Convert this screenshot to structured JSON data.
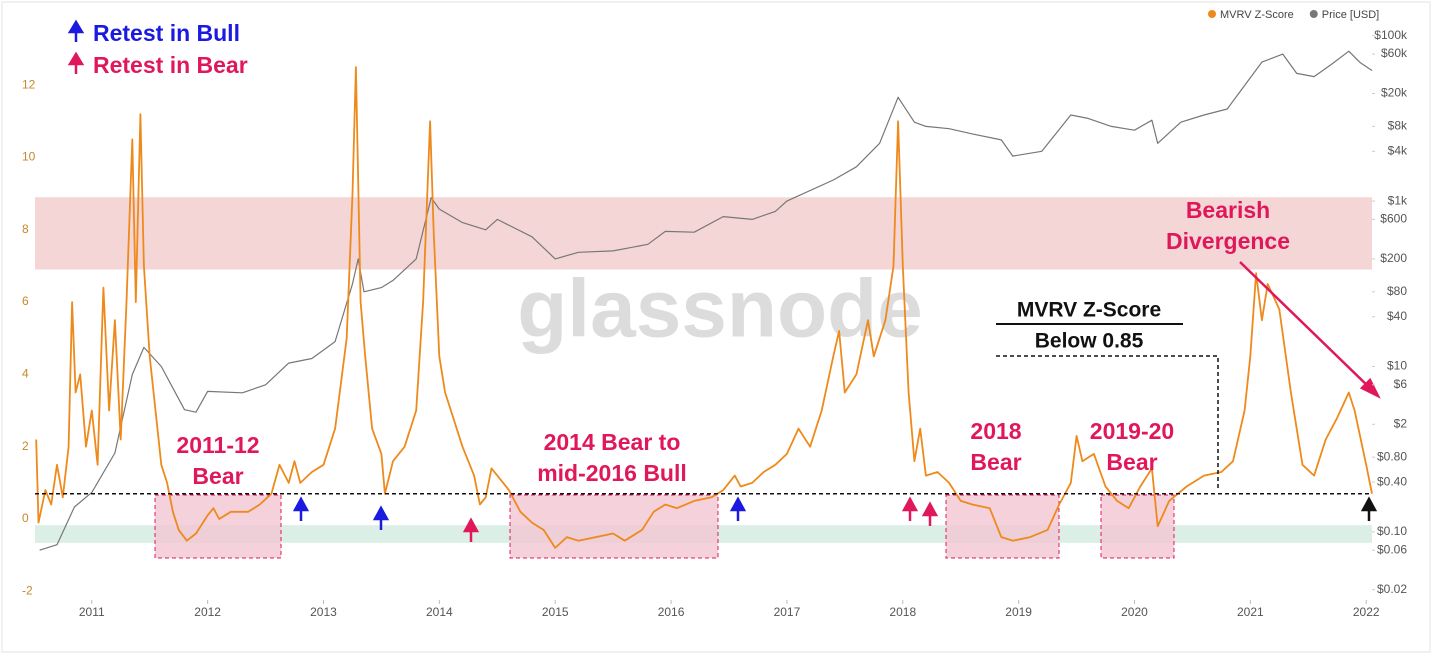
{
  "chart_data": {
    "type": "line",
    "watermark": "glassnode",
    "xlim": [
      2010.51,
      2022.05
    ],
    "xticks": [
      2011,
      2012,
      2013,
      2014,
      2015,
      2016,
      2017,
      2018,
      2019,
      2020,
      2021,
      2022
    ],
    "ylim": [
      -2.24,
      13.94
    ],
    "yticks": [
      -2,
      0,
      2,
      4,
      6,
      8,
      10,
      12
    ],
    "y2lim": [
      0.015,
      178000
    ],
    "y2scale": "log",
    "y2ticks": [
      {
        "value": 0.02,
        "label": "$0.02"
      },
      {
        "value": 0.06,
        "label": "$0.06"
      },
      {
        "value": 0.1,
        "label": "$0.10"
      },
      {
        "value": 0.4,
        "label": "$0.40"
      },
      {
        "value": 0.8,
        "label": "$0.80"
      },
      {
        "value": 2,
        "label": "$2"
      },
      {
        "value": 6,
        "label": "$6"
      },
      {
        "value": 10,
        "label": "$10"
      },
      {
        "value": 40,
        "label": "$40"
      },
      {
        "value": 80,
        "label": "$80"
      },
      {
        "value": 200,
        "label": "$200"
      },
      {
        "value": 600,
        "label": "$600"
      },
      {
        "value": 1000,
        "label": "$1k"
      },
      {
        "value": 4000,
        "label": "$4k"
      },
      {
        "value": 8000,
        "label": "$8k"
      },
      {
        "value": 20000,
        "label": "$20k"
      },
      {
        "value": 60000,
        "label": "$60k"
      },
      {
        "value": 100000,
        "label": "$100k"
      }
    ],
    "bands": [
      {
        "from": 6.9,
        "to": 8.9,
        "color": "#f2cccc"
      },
      {
        "from": -0.66,
        "to": -0.17,
        "color": "#d3ebe0"
      }
    ],
    "threshold": 0.7,
    "series": [
      {
        "name": "MVRV Z-Score",
        "color": "#ee8a1c",
        "x": [
          2010.52,
          2010.54,
          2010.6,
          2010.65,
          2010.7,
          2010.75,
          2010.8,
          2010.83,
          2010.86,
          2010.9,
          2010.95,
          2011.0,
          2011.05,
          2011.1,
          2011.15,
          2011.2,
          2011.25,
          2011.3,
          2011.35,
          2011.38,
          2011.42,
          2011.45,
          2011.5,
          2011.55,
          2011.6,
          2011.65,
          2011.7,
          2011.75,
          2011.82,
          2011.9,
          2012.0,
          2012.05,
          2012.1,
          2012.2,
          2012.35,
          2012.45,
          2012.55,
          2012.62,
          2012.7,
          2012.75,
          2012.8,
          2012.9,
          2013.0,
          2013.1,
          2013.2,
          2013.25,
          2013.28,
          2013.32,
          2013.36,
          2013.42,
          2013.5,
          2013.53,
          2013.6,
          2013.7,
          2013.8,
          2013.86,
          2013.92,
          2013.95,
          2014.0,
          2014.05,
          2014.1,
          2014.2,
          2014.3,
          2014.35,
          2014.4,
          2014.45,
          2014.5,
          2014.6,
          2014.7,
          2014.8,
          2014.9,
          2015.0,
          2015.1,
          2015.2,
          2015.35,
          2015.5,
          2015.6,
          2015.75,
          2015.85,
          2015.95,
          2016.05,
          2016.2,
          2016.35,
          2016.45,
          2016.55,
          2016.6,
          2016.7,
          2016.8,
          2016.9,
          2017.0,
          2017.1,
          2017.2,
          2017.3,
          2017.4,
          2017.45,
          2017.5,
          2017.6,
          2017.7,
          2017.75,
          2017.85,
          2017.92,
          2017.96,
          2018.0,
          2018.05,
          2018.1,
          2018.15,
          2018.2,
          2018.3,
          2018.4,
          2018.5,
          2018.6,
          2018.75,
          2018.85,
          2018.95,
          2019.1,
          2019.25,
          2019.35,
          2019.45,
          2019.5,
          2019.55,
          2019.65,
          2019.75,
          2019.85,
          2019.95,
          2020.05,
          2020.15,
          2020.2,
          2020.3,
          2020.45,
          2020.6,
          2020.75,
          2020.85,
          2020.95,
          2021.0,
          2021.05,
          2021.1,
          2021.15,
          2021.25,
          2021.35,
          2021.45,
          2021.55,
          2021.65,
          2021.75,
          2021.85,
          2021.9,
          2022.0,
          2022.05
        ],
        "values": [
          2.2,
          -0.1,
          0.8,
          0.4,
          1.5,
          0.6,
          2.0,
          6.0,
          3.5,
          4.0,
          2.0,
          3.0,
          1.5,
          6.4,
          3.0,
          5.5,
          2.2,
          6.0,
          10.5,
          6.0,
          11.2,
          7.0,
          4.5,
          3.0,
          1.5,
          1.0,
          0.2,
          -0.3,
          -0.6,
          -0.4,
          0.1,
          0.3,
          0.0,
          0.2,
          0.2,
          0.4,
          0.7,
          1.5,
          1.0,
          1.6,
          1.0,
          1.3,
          1.5,
          2.5,
          5.0,
          9.0,
          12.5,
          6.0,
          4.5,
          2.5,
          1.8,
          0.7,
          1.6,
          2.0,
          3.0,
          6.0,
          11.0,
          8.0,
          4.5,
          3.5,
          3.0,
          2.0,
          1.2,
          0.4,
          0.6,
          1.4,
          1.2,
          0.8,
          0.2,
          -0.1,
          -0.3,
          -0.8,
          -0.5,
          -0.6,
          -0.5,
          -0.4,
          -0.6,
          -0.3,
          0.2,
          0.4,
          0.3,
          0.5,
          0.6,
          0.8,
          1.2,
          0.9,
          1.0,
          1.3,
          1.5,
          1.8,
          2.5,
          2.0,
          3.0,
          4.5,
          5.2,
          3.5,
          4.0,
          5.5,
          4.5,
          5.5,
          7.0,
          11.0,
          7.0,
          3.5,
          1.6,
          2.5,
          1.2,
          1.3,
          1.0,
          0.5,
          0.4,
          0.3,
          -0.5,
          -0.6,
          -0.5,
          -0.3,
          0.4,
          1.0,
          2.3,
          1.6,
          1.8,
          0.9,
          0.5,
          0.3,
          0.9,
          1.4,
          -0.2,
          0.5,
          0.9,
          1.2,
          1.3,
          1.6,
          3.0,
          4.5,
          6.8,
          5.5,
          6.5,
          5.8,
          3.5,
          1.5,
          1.2,
          2.2,
          2.8,
          3.5,
          3.0,
          1.5,
          0.7
        ]
      },
      {
        "name": "Price [USD]",
        "color": "#777777",
        "axis": "y2",
        "x": [
          2010.55,
          2010.7,
          2010.85,
          2011.0,
          2011.2,
          2011.35,
          2011.45,
          2011.6,
          2011.8,
          2011.9,
          2012.0,
          2012.3,
          2012.5,
          2012.7,
          2012.9,
          2013.1,
          2013.25,
          2013.3,
          2013.35,
          2013.5,
          2013.6,
          2013.8,
          2013.93,
          2014.0,
          2014.2,
          2014.4,
          2014.5,
          2014.8,
          2015.0,
          2015.2,
          2015.5,
          2015.8,
          2015.95,
          2016.2,
          2016.45,
          2016.7,
          2016.9,
          2017.0,
          2017.4,
          2017.6,
          2017.8,
          2017.96,
          2018.1,
          2018.2,
          2018.4,
          2018.6,
          2018.85,
          2018.95,
          2019.2,
          2019.45,
          2019.6,
          2019.8,
          2020.0,
          2020.15,
          2020.2,
          2020.4,
          2020.6,
          2020.8,
          2020.95,
          2021.1,
          2021.28,
          2021.4,
          2021.55,
          2021.7,
          2021.85,
          2021.95,
          2022.05
        ],
        "values": [
          0.06,
          0.07,
          0.2,
          0.3,
          0.9,
          8,
          17,
          10,
          3,
          2.8,
          5,
          4.8,
          6,
          11,
          12.5,
          20,
          100,
          200,
          80,
          90,
          110,
          200,
          1100,
          800,
          550,
          450,
          600,
          370,
          200,
          240,
          250,
          300,
          430,
          420,
          650,
          600,
          750,
          1000,
          1800,
          2600,
          5000,
          18000,
          9000,
          8000,
          7500,
          6500,
          5500,
          3500,
          4000,
          11000,
          10000,
          8000,
          7200,
          9500,
          5000,
          9000,
          11000,
          13000,
          25000,
          48000,
          60000,
          35000,
          32000,
          45000,
          65000,
          47000,
          38000
        ]
      }
    ],
    "annotations": [
      {
        "lines": [
          "Retest in Bull"
        ],
        "color": "blue"
      },
      {
        "lines": [
          "Retest in Bear"
        ],
        "color": "red"
      },
      {
        "lines": [
          "2011-12",
          "Bear"
        ],
        "color": "red"
      },
      {
        "lines": [
          "2014 Bear to",
          "mid-2016 Bull"
        ],
        "color": "red"
      },
      {
        "lines": [
          "2018",
          "Bear"
        ],
        "color": "red"
      },
      {
        "lines": [
          "2019-20",
          "Bear"
        ],
        "color": "red"
      },
      {
        "lines": [
          "Bearish",
          "Divergence"
        ],
        "color": "red"
      },
      {
        "lines": [
          "MVRV Z-Score",
          "Below 0.85"
        ],
        "color": "black"
      }
    ]
  }
}
